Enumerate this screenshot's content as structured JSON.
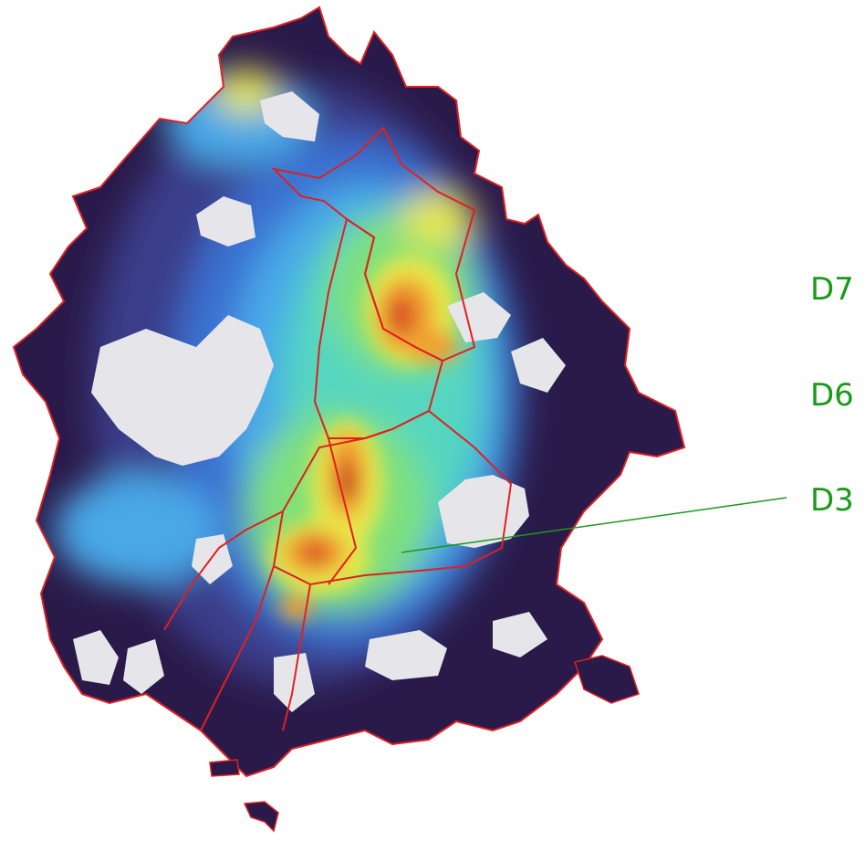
{
  "map": {
    "type": "heatmap",
    "palette": [
      "#2a1a4a",
      "#3a3c8a",
      "#3b6fd0",
      "#4aa8e8",
      "#55d6c0",
      "#7fe07a",
      "#e8e84a",
      "#f0a030",
      "#d85020",
      "#8a1a10"
    ],
    "boundary_color": "#e02020",
    "gap_color": "#e6e6ea"
  },
  "labels": [
    {
      "id": "D7",
      "text": "D7",
      "color": "#1a9a1a"
    },
    {
      "id": "D6",
      "text": "D6",
      "color": "#1a9a1a"
    },
    {
      "id": "D3",
      "text": "D3",
      "color": "#1a9a1a"
    }
  ],
  "leader_color": "#1a9a1a"
}
